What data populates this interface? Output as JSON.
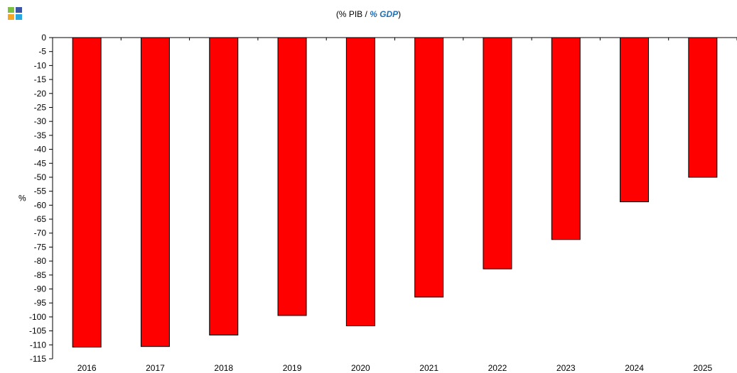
{
  "header": {
    "title_pre": "(% PIB / ",
    "title_gdp": "% GDP",
    "title_post": ")",
    "logo_colors": [
      "#7cc242",
      "#3a55a4",
      "#f5a623",
      "#29a8e0"
    ]
  },
  "chart_data": {
    "type": "bar",
    "categories": [
      "2016",
      "2017",
      "2018",
      "2019",
      "2020",
      "2021",
      "2022",
      "2023",
      "2024",
      "2025"
    ],
    "values": [
      -110.8,
      -110.6,
      -106.5,
      -99.5,
      -103.2,
      -92.9,
      -82.8,
      -72.3,
      -58.8,
      -50.0
    ],
    "ylabel": "%",
    "ylim": [
      -115,
      0
    ],
    "yticks": [
      0,
      -5,
      -10,
      -15,
      -20,
      -25,
      -30,
      -35,
      -40,
      -45,
      -50,
      -55,
      -60,
      -65,
      -70,
      -75,
      -80,
      -85,
      -90,
      -95,
      -100,
      -105,
      -110,
      -115
    ],
    "bar_color": "#ff0000",
    "grid": false
  }
}
